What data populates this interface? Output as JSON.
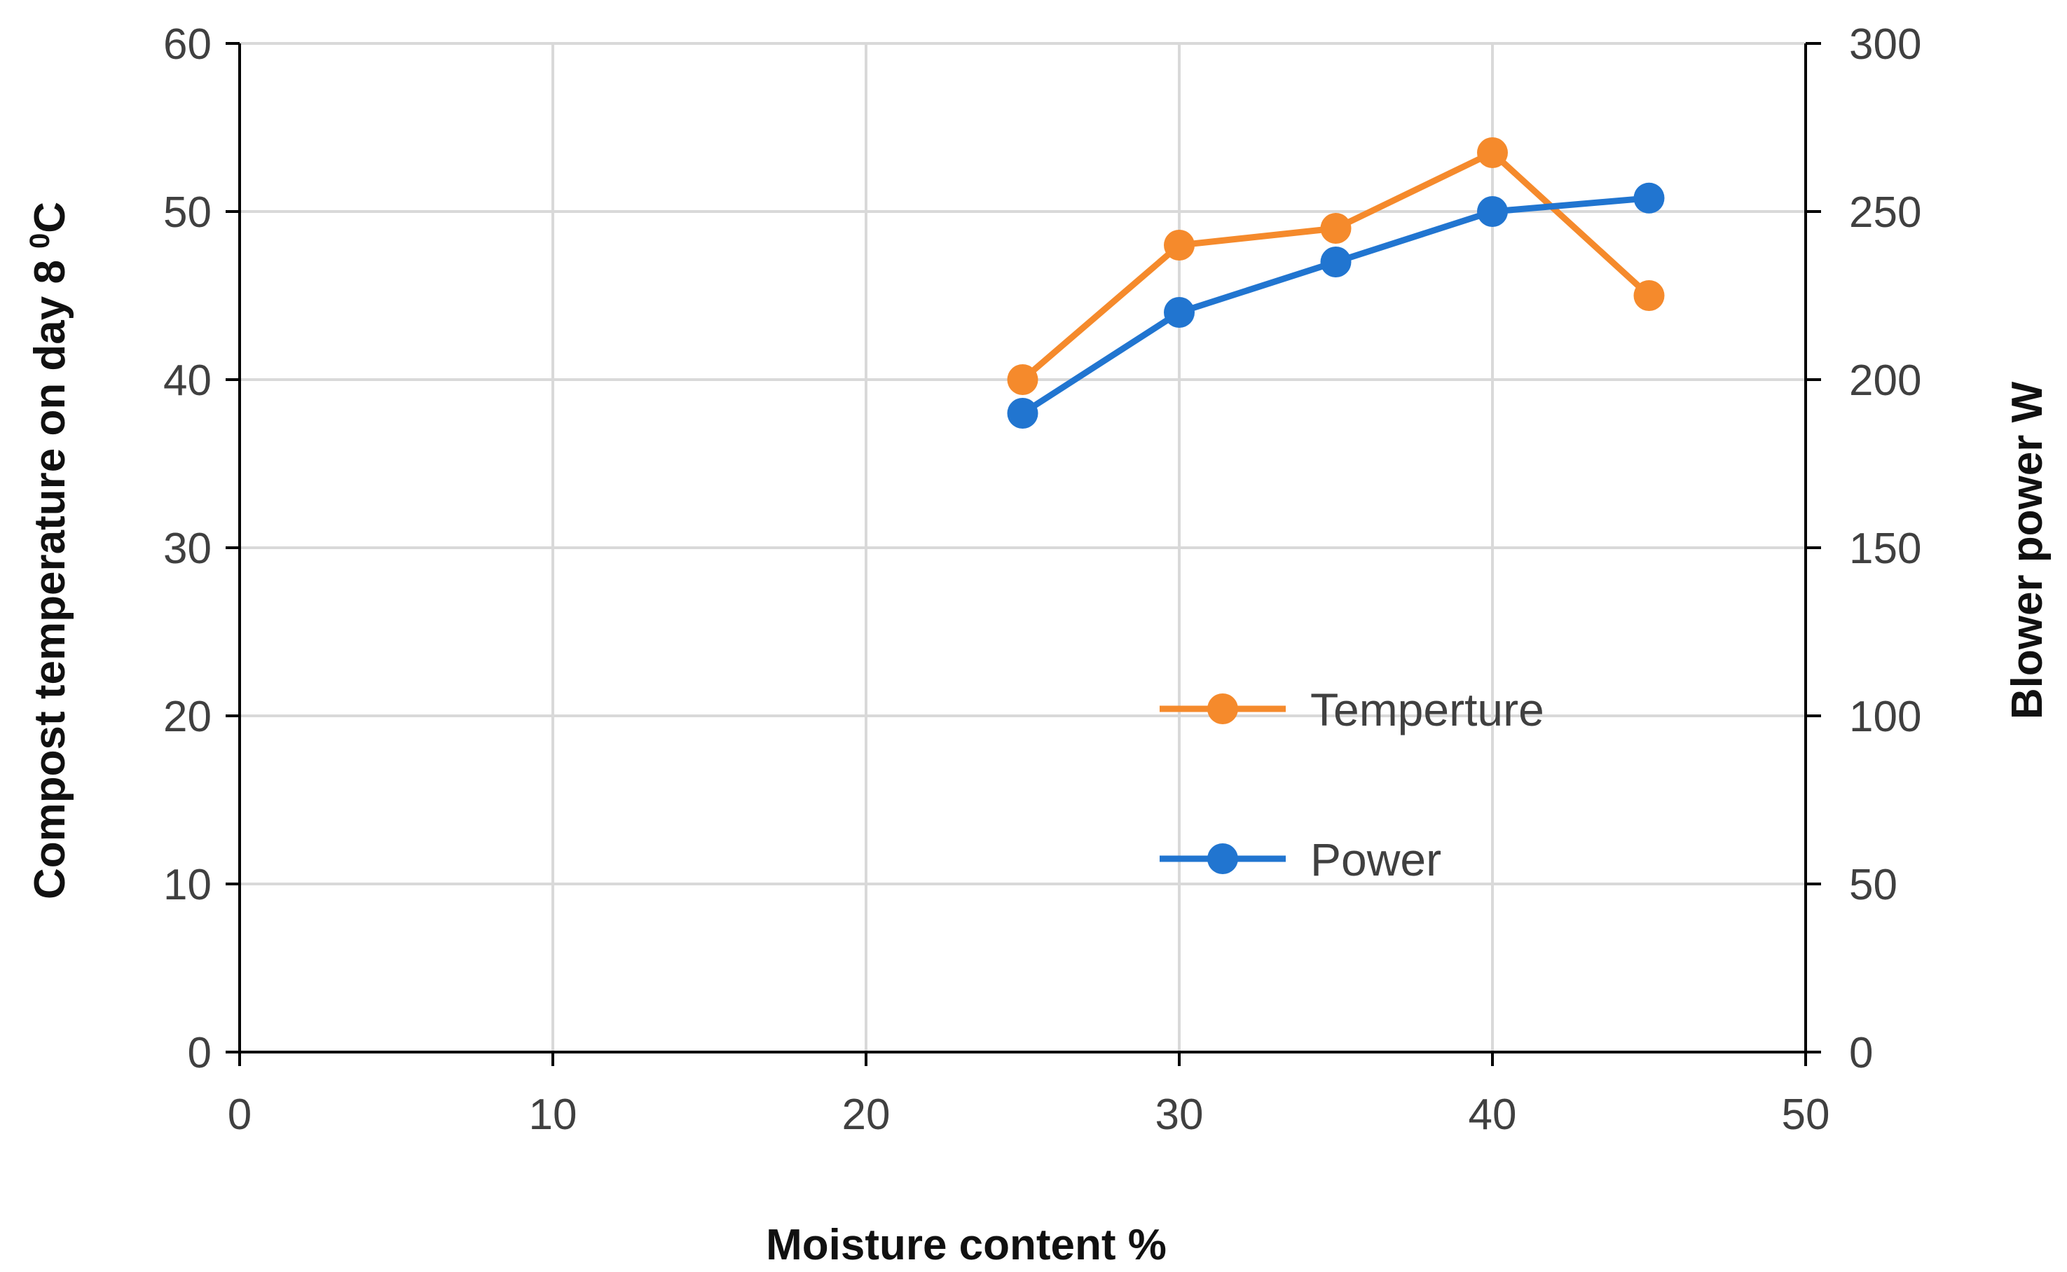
{
  "chart_data": {
    "type": "line",
    "title": "",
    "xlabel": "Moisture content %",
    "ylabel": "Compost temperature on day 8",
    "ylabel_unit": "°C",
    "ylabel_sup": "0",
    "ylabel_unit_letter": "C",
    "y2label": "Blower power W",
    "xlim": [
      0,
      50
    ],
    "ylim": [
      0,
      60
    ],
    "y2lim": [
      0,
      300
    ],
    "x_ticks": [
      "0",
      "10",
      "20",
      "30",
      "40",
      "50"
    ],
    "y_ticks": [
      "0",
      "10",
      "20",
      "30",
      "40",
      "50",
      "60"
    ],
    "y2_ticks": [
      "0",
      "50",
      "100",
      "150",
      "200",
      "250",
      "300"
    ],
    "grid": true,
    "legend_position": "center-right",
    "series": [
      {
        "name": "Temperture",
        "axis": "left",
        "color": "#F58A2C",
        "x": [
          25,
          30,
          35,
          40,
          45
        ],
        "values": [
          40,
          48,
          49,
          53.5,
          45
        ]
      },
      {
        "name": "Power",
        "axis": "right",
        "color": "#2175D0",
        "x": [
          25,
          30,
          35,
          40,
          45
        ],
        "values": [
          190,
          220,
          235,
          250,
          254
        ]
      }
    ]
  }
}
